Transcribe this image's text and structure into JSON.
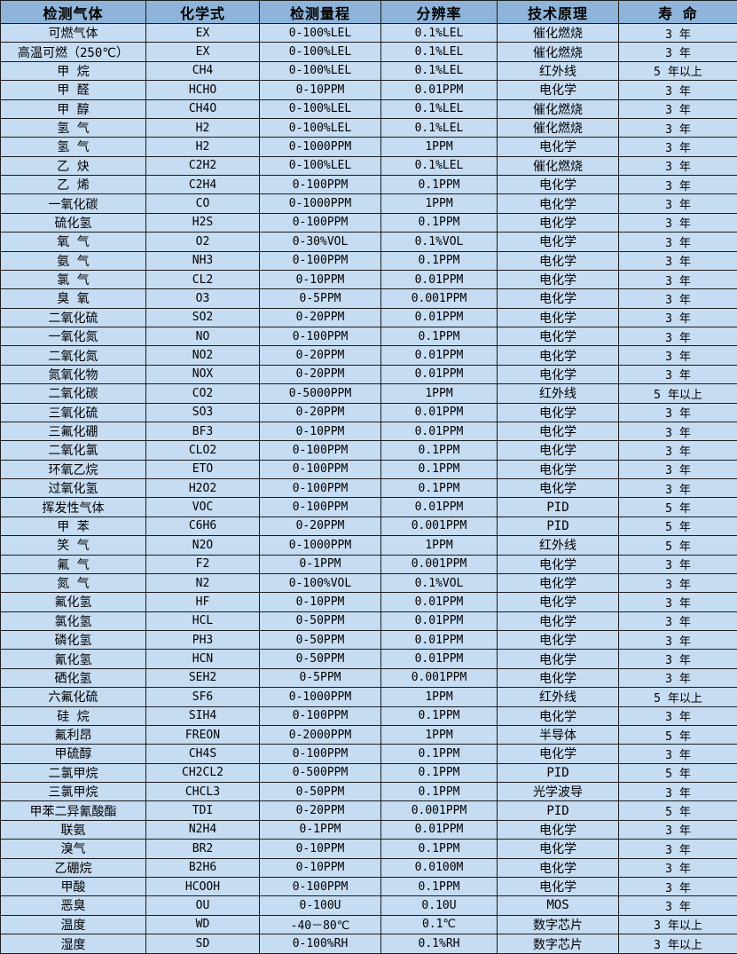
{
  "colors": {
    "header_bg": "#8fb4da",
    "row_bg": "#c6dcf2",
    "border": "#1c1c1c",
    "text": "#000000"
  },
  "table": {
    "columns": [
      "检测气体",
      "化学式",
      "检测量程",
      "分辨率",
      "技术原理",
      "寿 命"
    ],
    "rows": [
      [
        "可燃气体",
        "EX",
        "0-100%LEL",
        "0.1%LEL",
        "催化燃烧",
        "3 年"
      ],
      [
        "高温可燃（250℃）",
        "EX",
        "0-100%LEL",
        "0.1%LEL",
        "催化燃烧",
        "3 年"
      ],
      [
        "甲 烷",
        "CH4",
        "0-100%LEL",
        "0.1%LEL",
        "红外线",
        "5 年以上"
      ],
      [
        "甲 醛",
        "HCHO",
        "0-10PPM",
        "0.01PPM",
        "电化学",
        "3 年"
      ],
      [
        "甲 醇",
        "CH4O",
        "0-100%LEL",
        "0.1%LEL",
        "催化燃烧",
        "3 年"
      ],
      [
        "氢 气",
        "H2",
        "0-100%LEL",
        "0.1%LEL",
        "催化燃烧",
        "3 年"
      ],
      [
        "氢 气",
        "H2",
        "0-1000PPM",
        "1PPM",
        "电化学",
        "3 年"
      ],
      [
        "乙 炔",
        "C2H2",
        "0-100%LEL",
        "0.1%LEL",
        "催化燃烧",
        "3 年"
      ],
      [
        "乙 烯",
        "C2H4",
        "0-100PPM",
        "0.1PPM",
        "电化学",
        "3 年"
      ],
      [
        "一氧化碳",
        "CO",
        "0-1000PPM",
        "1PPM",
        "电化学",
        "3 年"
      ],
      [
        "硫化氢",
        "H2S",
        "0-100PPM",
        "0.1PPM",
        "电化学",
        "3 年"
      ],
      [
        "氧 气",
        "O2",
        "0-30%VOL",
        "0.1%VOL",
        "电化学",
        "3 年"
      ],
      [
        "氨 气",
        "NH3",
        "0-100PPM",
        "0.1PPM",
        "电化学",
        "3 年"
      ],
      [
        "氯 气",
        "CL2",
        "0-10PPM",
        "0.01PPM",
        "电化学",
        "3 年"
      ],
      [
        "臭 氧",
        "O3",
        "0-5PPM",
        "0.001PPM",
        "电化学",
        "3 年"
      ],
      [
        "二氧化硫",
        "SO2",
        "0-20PPM",
        "0.01PPM",
        "电化学",
        "3 年"
      ],
      [
        "一氧化氮",
        "NO",
        "0-100PPM",
        "0.1PPM",
        "电化学",
        "3 年"
      ],
      [
        "二氧化氮",
        "NO2",
        "0-20PPM",
        "0.01PPM",
        "电化学",
        "3 年"
      ],
      [
        "氮氧化物",
        "NOX",
        "0-20PPM",
        "0.01PPM",
        "电化学",
        "3 年"
      ],
      [
        "二氧化碳",
        "CO2",
        "0-5000PPM",
        "1PPM",
        "红外线",
        "5 年以上"
      ],
      [
        "三氧化硫",
        "SO3",
        "0-20PPM",
        "0.01PPM",
        "电化学",
        "3 年"
      ],
      [
        "三氟化硼",
        "BF3",
        "0-10PPM",
        "0.01PPM",
        "电化学",
        "3 年"
      ],
      [
        "二氧化氯",
        "CLO2",
        "0-100PPM",
        "0.1PPM",
        "电化学",
        "3 年"
      ],
      [
        "环氧乙烷",
        "ETO",
        "0-100PPM",
        "0.1PPM",
        "电化学",
        "3 年"
      ],
      [
        "过氧化氢",
        "H2O2",
        "0-100PPM",
        "0.1PPM",
        "电化学",
        "3 年"
      ],
      [
        "挥发性气体",
        "VOC",
        "0-100PPM",
        "0.01PPM",
        "PID",
        "5 年"
      ],
      [
        "甲 苯",
        "C6H6",
        "0-20PPM",
        "0.001PPM",
        "PID",
        "5 年"
      ],
      [
        "笑 气",
        "N2O",
        "0-1000PPM",
        "1PPM",
        "红外线",
        "5 年"
      ],
      [
        "氟 气",
        "F2",
        "0-1PPM",
        "0.001PPM",
        "电化学",
        "3 年"
      ],
      [
        "氮 气",
        "N2",
        "0-100%VOL",
        "0.1%VOL",
        "电化学",
        "3 年"
      ],
      [
        "氟化氢",
        "HF",
        "0-10PPM",
        "0.01PPM",
        "电化学",
        "3 年"
      ],
      [
        "氯化氢",
        "HCL",
        "0-50PPM",
        "0.01PPM",
        "电化学",
        "3 年"
      ],
      [
        "磷化氢",
        "PH3",
        "0-50PPM",
        "0.01PPM",
        "电化学",
        "3 年"
      ],
      [
        "氰化氢",
        "HCN",
        "0-50PPM",
        "0.01PPM",
        "电化学",
        "3 年"
      ],
      [
        "硒化氢",
        "SEH2",
        "0-5PPM",
        "0.001PPM",
        "电化学",
        "3 年"
      ],
      [
        "六氟化硫",
        "SF6",
        "0-1000PPM",
        "1PPM",
        "红外线",
        "5 年以上"
      ],
      [
        "硅 烷",
        "SIH4",
        "0-100PPM",
        "0.1PPM",
        "电化学",
        "3 年"
      ],
      [
        "氟利昂",
        "FREON",
        "0-2000PPM",
        "1PPM",
        "半导体",
        "5 年"
      ],
      [
        "甲硫醇",
        "CH4S",
        "0-100PPM",
        "0.1PPM",
        "电化学",
        "3 年"
      ],
      [
        "二氯甲烷",
        "CH2CL2",
        "0-500PPM",
        "0.1PPM",
        "PID",
        "5 年"
      ],
      [
        "三氯甲烷",
        "CHCL3",
        "0-50PPM",
        "0.1PPM",
        "光学波导",
        "3 年"
      ],
      [
        "甲苯二异氰酸酯",
        "TDI",
        "0-20PPM",
        "0.001PPM",
        "PID",
        "5 年"
      ],
      [
        "联氨",
        "N2H4",
        "0-1PPM",
        "0.01PPM",
        "电化学",
        "3 年"
      ],
      [
        "溴气",
        "BR2",
        "0-10PPM",
        "0.1PPM",
        "电化学",
        "3 年"
      ],
      [
        "乙硼烷",
        "B2H6",
        "0-10PPM",
        "0.0100M",
        "电化学",
        "3 年"
      ],
      [
        "甲酸",
        "HCOOH",
        "0-100PPM",
        "0.1PPM",
        "电化学",
        "3 年"
      ],
      [
        "恶臭",
        "OU",
        "0-100U",
        "0.10U",
        "MOS",
        "3 年"
      ],
      [
        "温度",
        "WD",
        "-40－80℃",
        "0.1℃",
        "数字芯片",
        "3 年以上"
      ],
      [
        "湿度",
        "SD",
        "0-100%RH",
        "0.1%RH",
        "数字芯片",
        "3 年以上"
      ]
    ]
  }
}
